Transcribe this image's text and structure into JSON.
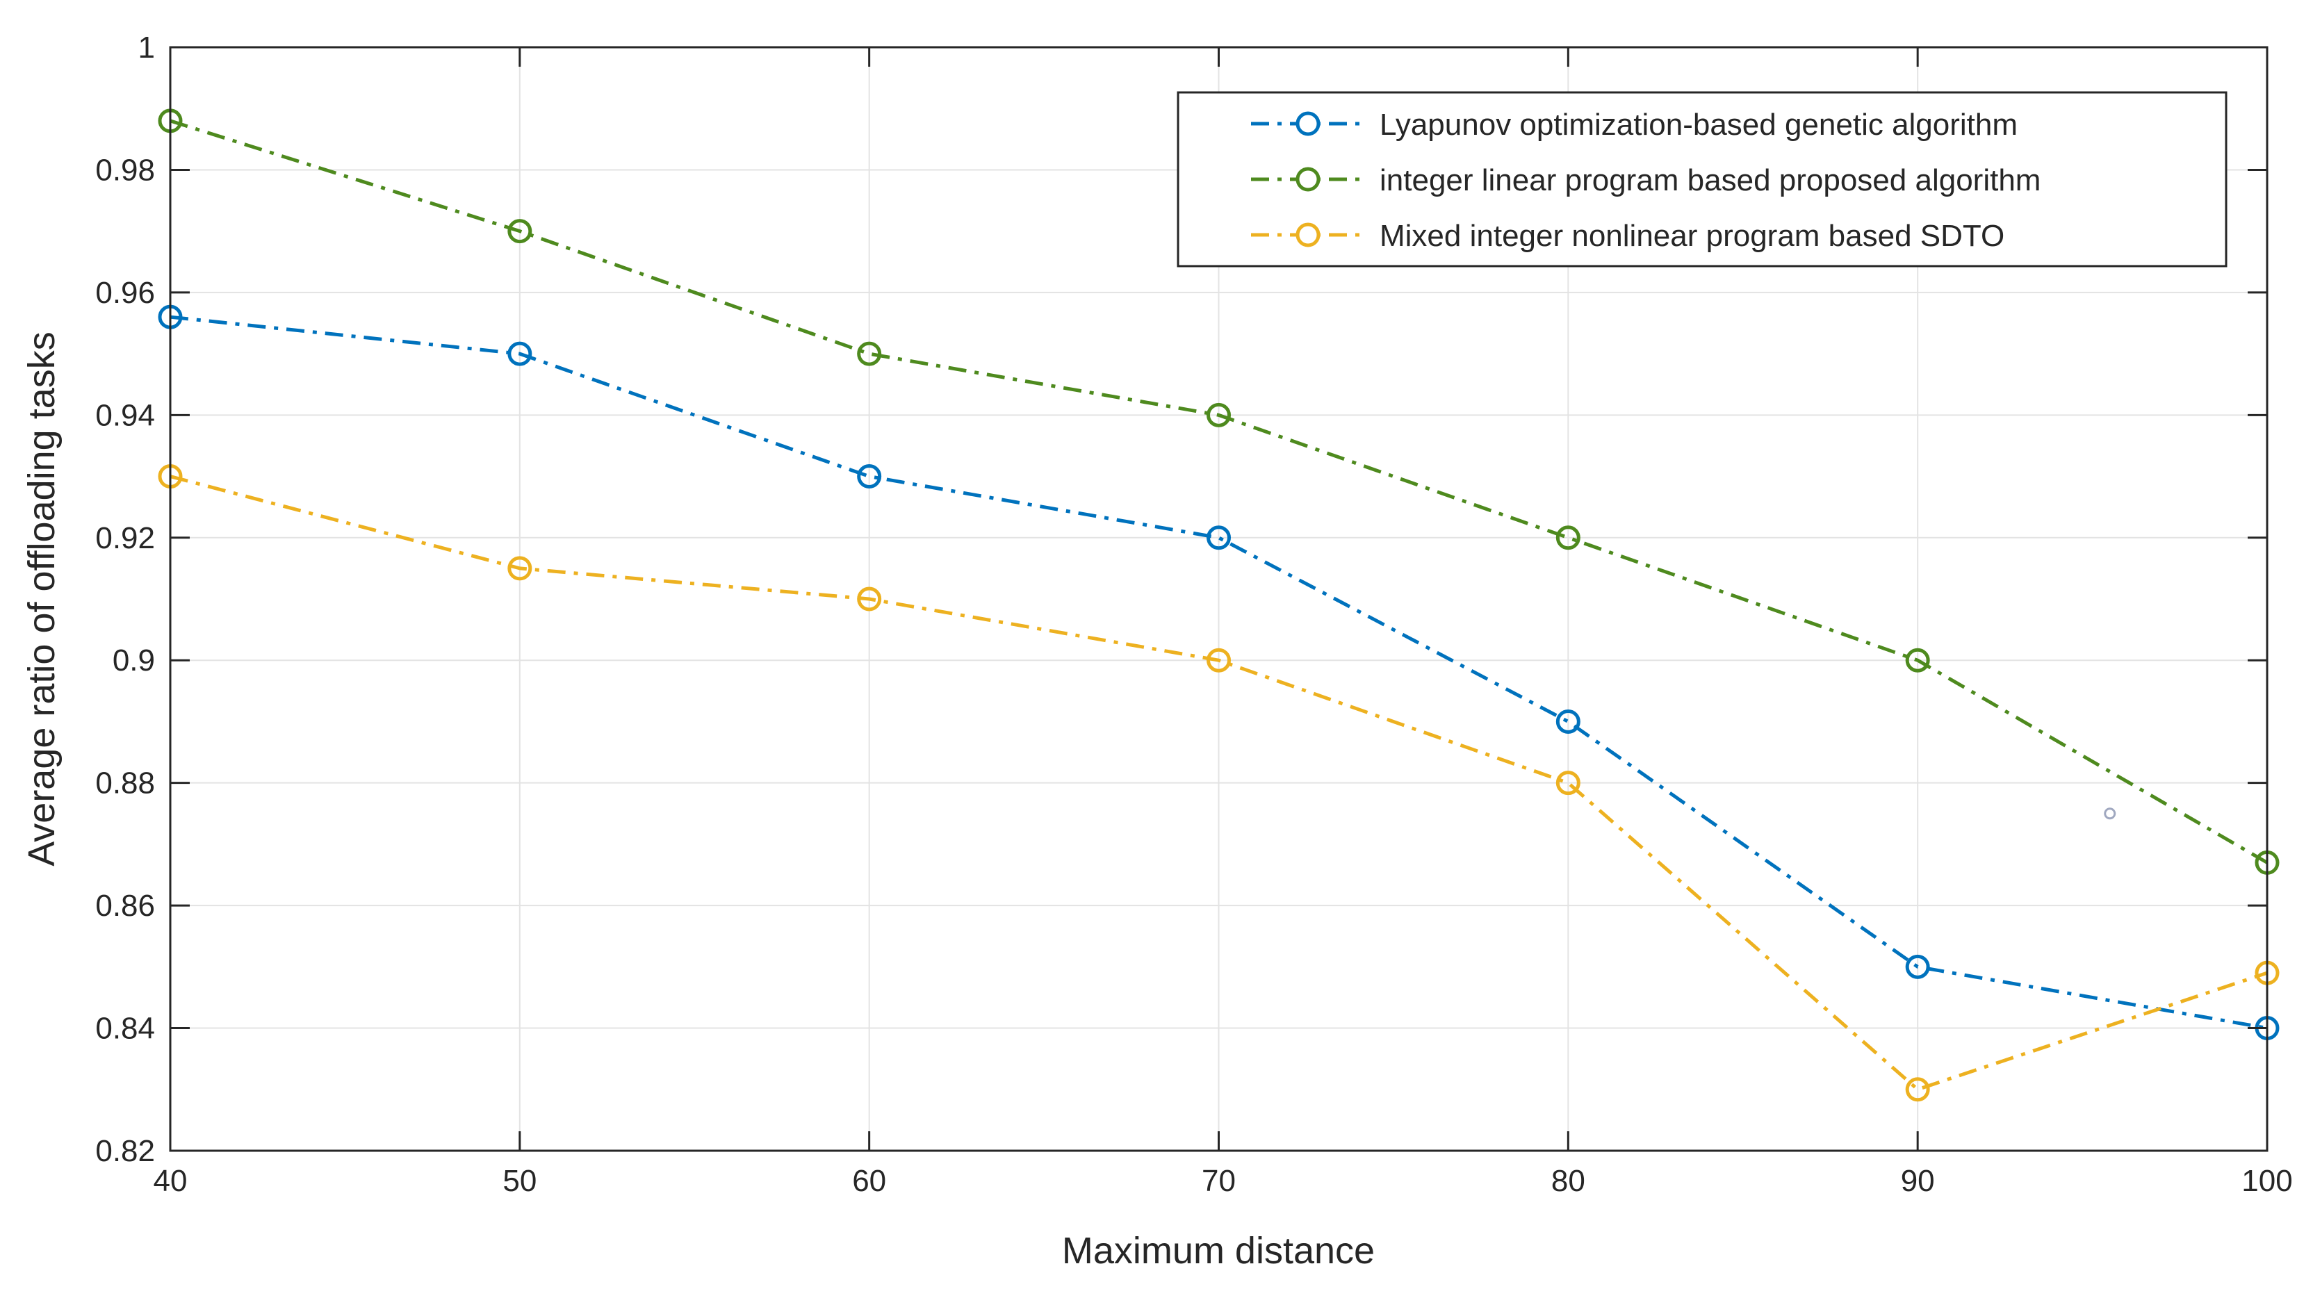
{
  "chart_data": {
    "type": "line",
    "xlabel": "Maximum distance",
    "ylabel": "Average ratio of offloading tasks",
    "xlim": [
      40,
      100
    ],
    "ylim": [
      0.82,
      1
    ],
    "x_ticks": [
      "40",
      "50",
      "60",
      "70",
      "80",
      "90",
      "100"
    ],
    "y_ticks": [
      "0.82",
      "0.84",
      "0.86",
      "0.88",
      "0.9",
      "0.92",
      "0.94",
      "0.96",
      "0.98",
      "1"
    ],
    "grid": true,
    "legend_location": "top-right",
    "x": [
      40,
      50,
      60,
      70,
      80,
      90,
      100
    ],
    "series": [
      {
        "name": "Lyapunov optimization-based genetic algorithm",
        "color": "#0072BD",
        "values": [
          0.956,
          0.95,
          0.93,
          0.92,
          0.89,
          0.85,
          0.84
        ]
      },
      {
        "name": "integer linear program based proposed algorithm",
        "color": "#4E8A1E",
        "values": [
          0.988,
          0.97,
          0.95,
          0.94,
          0.92,
          0.9,
          0.867
        ]
      },
      {
        "name": "Mixed integer nonlinear program based SDTO",
        "color": "#EDB120",
        "values": [
          0.93,
          0.915,
          0.91,
          0.9,
          0.88,
          0.83,
          0.849
        ]
      }
    ],
    "stray_marker": {
      "x": 95.5,
      "y": 0.875,
      "color": "#A0A8C0"
    }
  }
}
